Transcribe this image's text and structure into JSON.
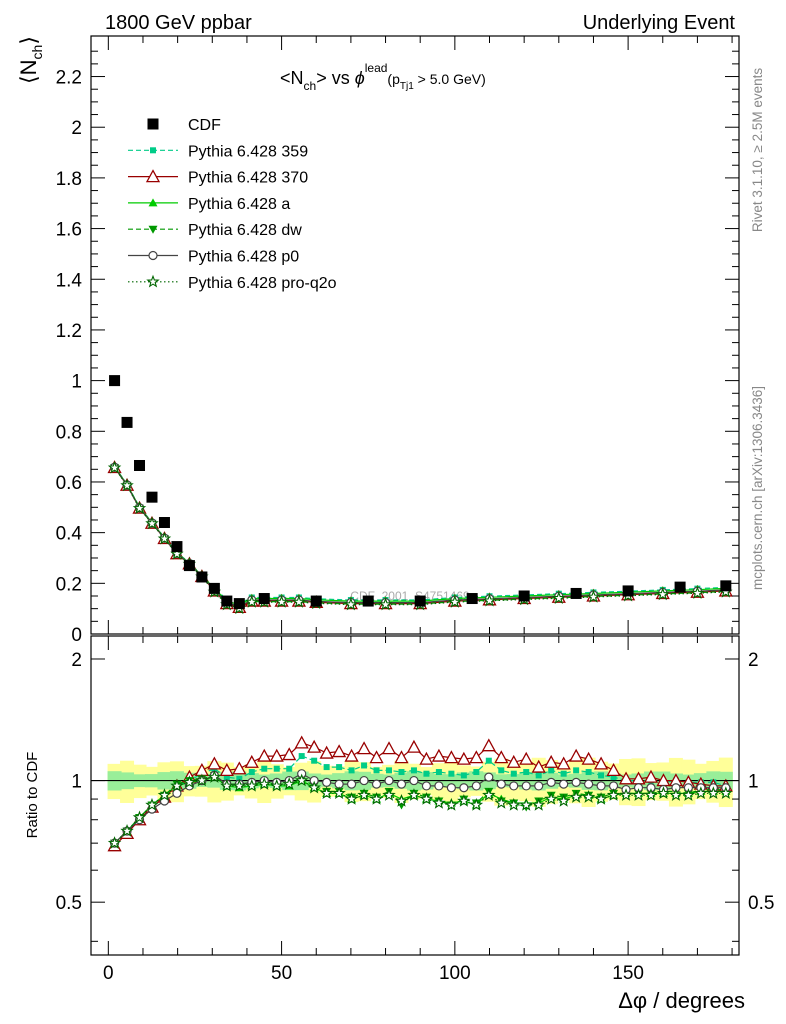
{
  "header": {
    "left": "1800 GeV ppbar",
    "right": "Underlying Event",
    "side_top": "Rivet 3.1.10, ≥ 2.5M events",
    "side_bottom": "mcplots.cern.ch [arXiv:1306.3436]",
    "watermark": "CDF_2001_S4751469"
  },
  "chart_data": [
    {
      "type": "scatter",
      "panel": "main",
      "title": "<N_ch> vs φ^lead (p_Tj1 > 5.0 GeV)",
      "ylabel": "⟨N_ch⟩",
      "xlabel": "",
      "xlim": [
        -5,
        182
      ],
      "ylim": [
        0,
        2.36
      ],
      "grid": false,
      "legend_placement": "top-left",
      "yticks": [
        "0",
        "0.2",
        "0.4",
        "0.6",
        "0.8",
        "1",
        "1.2",
        "1.4",
        "1.6",
        "1.8",
        "2",
        "2.2"
      ],
      "series": [
        {
          "name": "CDF",
          "color": "#000000",
          "marker": "square",
          "x": [
            1.8,
            5.4,
            9.0,
            12.6,
            16.2,
            19.8,
            23.4,
            27.0,
            30.6,
            34.2,
            37.8,
            45,
            60,
            75,
            90,
            105,
            120,
            135,
            150,
            165,
            178.2
          ],
          "y": [
            1.0,
            0.835,
            0.665,
            0.54,
            0.44,
            0.345,
            0.27,
            0.225,
            0.18,
            0.13,
            0.12,
            0.14,
            0.13,
            0.13,
            0.13,
            0.14,
            0.15,
            0.16,
            0.17,
            0.185,
            0.19
          ]
        },
        {
          "name": "Pythia 6.428 359",
          "color": "#00cc88",
          "marker": "small-square",
          "line": "dashed"
        },
        {
          "name": "Pythia 6.428 370",
          "color": "#990000",
          "marker": "open-triangle",
          "line": "solid"
        },
        {
          "name": "Pythia 6.428 a",
          "color": "#00cc00",
          "marker": "triangle",
          "line": "solid"
        },
        {
          "name": "Pythia 6.428 dw",
          "color": "#009900",
          "marker": "inverted-triangle",
          "line": "dashed"
        },
        {
          "name": "Pythia 6.428 p0",
          "color": "#444444",
          "marker": "open-circle",
          "line": "solid"
        },
        {
          "name": "Pythia 6.428 pro-q2o",
          "color": "#006600",
          "marker": "open-star",
          "line": "dotted"
        }
      ],
      "mc_common": {
        "x": [
          1.8,
          5.4,
          9.0,
          12.6,
          16.2,
          19.8,
          23.4,
          27.0,
          30.6,
          34.2,
          37.8,
          41.4,
          45,
          50,
          55,
          60,
          70,
          80,
          90,
          100,
          110,
          120,
          130,
          140,
          150,
          160,
          170,
          178.2
        ],
        "y": [
          0.66,
          0.59,
          0.5,
          0.44,
          0.38,
          0.32,
          0.28,
          0.23,
          0.18,
          0.13,
          0.115,
          0.14,
          0.14,
          0.14,
          0.14,
          0.135,
          0.13,
          0.13,
          0.13,
          0.14,
          0.145,
          0.15,
          0.155,
          0.16,
          0.165,
          0.17,
          0.175,
          0.18
        ]
      }
    },
    {
      "type": "line",
      "panel": "ratio",
      "ylabel": "Ratio to CDF",
      "xlabel": "Δφ / degrees",
      "xlim": [
        -5,
        182
      ],
      "ylim": [
        0.37,
        2.28
      ],
      "grid": false,
      "xticks": [
        "0",
        "50",
        "100",
        "150"
      ],
      "yticks": [
        "0.5",
        "1",
        "2"
      ],
      "reference": 1.0,
      "x": [
        1.8,
        5.4,
        9.0,
        12.6,
        16.2,
        19.8,
        23.4,
        27.0,
        30.6,
        34.2,
        37.8,
        41.4,
        45.0,
        48.6,
        52.2,
        55.8,
        59.4,
        63.0,
        66.6,
        70.2,
        73.8,
        77.4,
        81.0,
        84.6,
        88.2,
        91.8,
        95.4,
        99.0,
        102.6,
        106.2,
        109.8,
        113.4,
        117.0,
        120.6,
        124.2,
        127.8,
        131.4,
        135.0,
        138.6,
        142.2,
        145.8,
        149.4,
        153.0,
        156.6,
        160.2,
        163.8,
        167.4,
        171.0,
        174.6,
        178.2
      ],
      "series": [
        {
          "name": "Pythia 6.428 359",
          "color": "#00cc88",
          "values": [
            0.7,
            0.75,
            0.81,
            0.87,
            0.92,
            0.97,
            1.0,
            1.04,
            1.07,
            1.02,
            1.01,
            1.05,
            1.07,
            1.07,
            1.07,
            1.15,
            1.12,
            1.08,
            1.08,
            1.06,
            1.09,
            1.06,
            1.06,
            1.05,
            1.06,
            1.04,
            1.05,
            1.04,
            1.03,
            1.05,
            1.12,
            1.06,
            1.04,
            1.05,
            1.03,
            1.06,
            1.04,
            1.06,
            1.05,
            1.03,
            1.02,
            1.0,
            1.0,
            1.0,
            0.99,
            1.0,
            0.99,
            0.99,
            0.99,
            0.97
          ]
        },
        {
          "name": "Pythia 6.428 370",
          "color": "#990000",
          "values": [
            0.69,
            0.74,
            0.8,
            0.86,
            0.91,
            0.97,
            1.02,
            1.06,
            1.1,
            1.06,
            1.07,
            1.11,
            1.15,
            1.15,
            1.16,
            1.24,
            1.21,
            1.17,
            1.18,
            1.15,
            1.2,
            1.14,
            1.2,
            1.14,
            1.21,
            1.13,
            1.15,
            1.14,
            1.13,
            1.14,
            1.22,
            1.14,
            1.11,
            1.13,
            1.08,
            1.11,
            1.1,
            1.15,
            1.13,
            1.1,
            1.06,
            1.01,
            1.01,
            1.02,
            1.0,
            1.0,
            0.99,
            0.98,
            0.97,
            0.97
          ]
        },
        {
          "name": "Pythia 6.428 a",
          "color": "#00cc00",
          "values": [
            0.7,
            0.75,
            0.81,
            0.87,
            0.92,
            0.97,
            0.99,
            1.0,
            1.02,
            0.97,
            0.96,
            0.97,
            0.98,
            0.97,
            0.97,
            1.0,
            0.96,
            0.93,
            0.93,
            0.9,
            0.92,
            0.9,
            0.93,
            0.9,
            0.92,
            0.9,
            0.89,
            0.88,
            0.89,
            0.87,
            0.93,
            0.9,
            0.88,
            0.88,
            0.88,
            0.91,
            0.9,
            0.92,
            0.92,
            0.9,
            0.92,
            0.93,
            0.93,
            0.93,
            0.93,
            0.93,
            0.93,
            0.94,
            0.94,
            0.94
          ]
        },
        {
          "name": "Pythia 6.428 dw",
          "color": "#009900",
          "values": [
            0.7,
            0.75,
            0.81,
            0.87,
            0.92,
            0.98,
            1.0,
            1.01,
            1.03,
            0.98,
            0.97,
            0.98,
            0.99,
            0.98,
            0.98,
            1.01,
            0.97,
            0.94,
            0.94,
            0.91,
            0.93,
            0.91,
            0.94,
            0.87,
            0.93,
            0.91,
            0.89,
            0.87,
            0.9,
            0.88,
            0.94,
            0.89,
            0.88,
            0.86,
            0.89,
            0.92,
            0.91,
            0.93,
            0.92,
            0.91,
            0.93,
            0.93,
            0.93,
            0.93,
            0.94,
            0.94,
            0.93,
            0.95,
            0.95,
            0.95
          ]
        },
        {
          "name": "Pythia 6.428 p0",
          "color": "#444444",
          "values": [
            0.7,
            0.75,
            0.8,
            0.85,
            0.89,
            0.93,
            0.97,
            1.0,
            1.03,
            0.98,
            0.98,
            0.99,
            1.0,
            0.99,
            1.0,
            1.04,
            1.0,
            0.99,
            0.98,
            0.98,
            1.0,
            0.98,
            1.0,
            0.98,
            1.0,
            0.97,
            0.97,
            0.96,
            0.96,
            0.97,
            1.02,
            0.98,
            0.97,
            0.97,
            0.97,
            0.99,
            0.98,
            0.99,
            0.98,
            0.97,
            0.97,
            0.95,
            0.96,
            0.96,
            0.95,
            0.96,
            0.96,
            0.96,
            0.96,
            0.96
          ]
        },
        {
          "name": "Pythia 6.428 pro-q2o",
          "color": "#006600",
          "values": [
            0.7,
            0.75,
            0.81,
            0.87,
            0.92,
            0.97,
            0.99,
            1.0,
            1.02,
            0.97,
            0.97,
            0.97,
            0.98,
            0.97,
            0.98,
            1.0,
            0.96,
            0.93,
            0.93,
            0.9,
            0.92,
            0.9,
            0.92,
            0.89,
            0.92,
            0.9,
            0.88,
            0.87,
            0.89,
            0.87,
            0.92,
            0.88,
            0.87,
            0.87,
            0.87,
            0.9,
            0.89,
            0.91,
            0.91,
            0.9,
            0.92,
            0.92,
            0.92,
            0.92,
            0.93,
            0.92,
            0.92,
            0.93,
            0.93,
            0.93
          ]
        }
      ]
    }
  ]
}
